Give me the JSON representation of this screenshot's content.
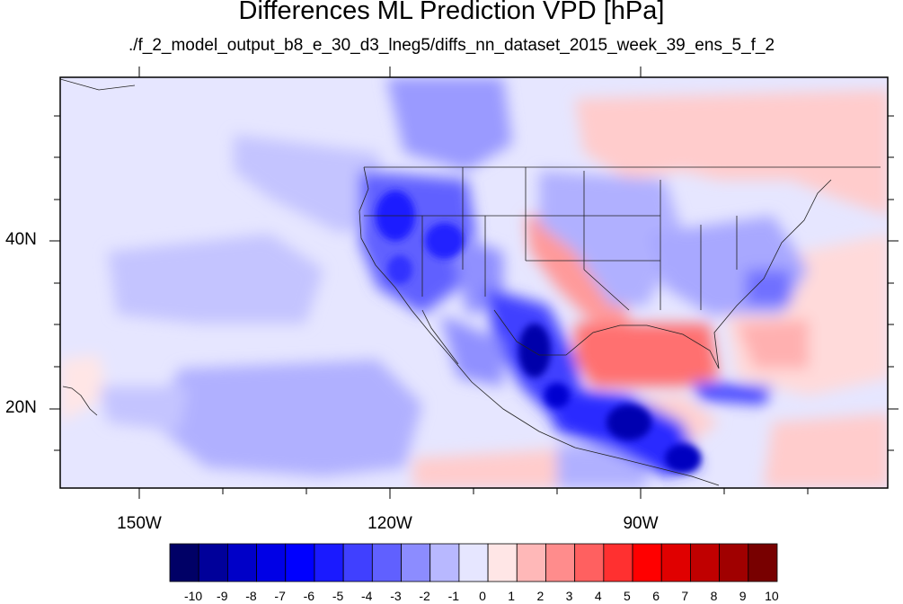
{
  "title": "Differences ML Prediction VPD [hPa]",
  "subtitle": "./f_2_model_output_b8_e_30_d3_lneg5/diffs_nn_dataset_2015_week_39_ens_5_f_2",
  "map": {
    "lon_labels": [
      "150W",
      "120W",
      "90W"
    ],
    "lat_labels": [
      "40N",
      "20N"
    ]
  },
  "colorbar": {
    "labels": [
      "-10",
      "-9",
      "-8",
      "-7",
      "-6",
      "-5",
      "-4",
      "-3",
      "-2",
      "-1",
      "0",
      "1",
      "2",
      "3",
      "4",
      "5",
      "6",
      "7",
      "8",
      "9",
      "10"
    ],
    "colors": [
      "#000066",
      "#00009a",
      "#0000c8",
      "#0000e6",
      "#0000ff",
      "#1a1aff",
      "#4040ff",
      "#6060ff",
      "#8c8cff",
      "#b8b8ff",
      "#e6e6ff",
      "#ffe6e6",
      "#ffb8b8",
      "#ff8c8c",
      "#ff6060",
      "#ff3030",
      "#ff0000",
      "#e00000",
      "#c00000",
      "#a00000",
      "#780000"
    ]
  }
}
